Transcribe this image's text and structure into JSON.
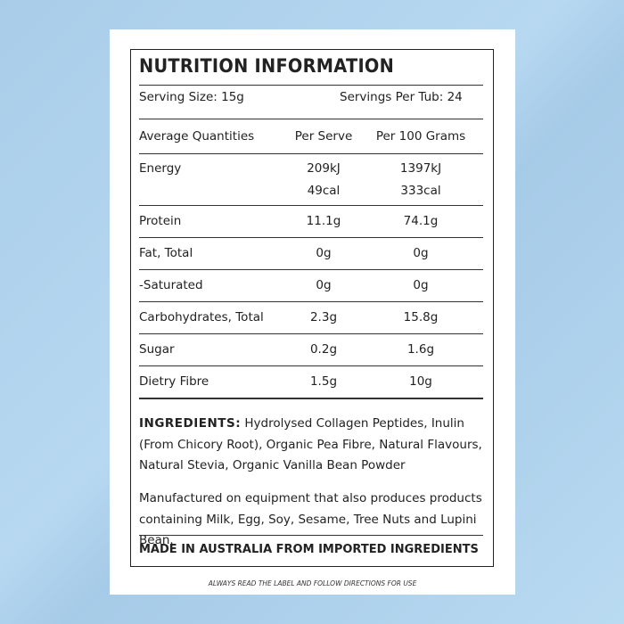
{
  "title": "NUTRITION INFORMATION",
  "serving_size": "Serving Size: 15g",
  "servings_per_tub": "Servings Per Tub: 24",
  "table": {
    "header": [
      "Average Quantities",
      "Per Serve",
      "Per 100 Grams"
    ],
    "rows": [
      [
        "Energy",
        [
          "209kJ",
          "49cal"
        ],
        [
          "1397kJ",
          "333cal"
        ]
      ],
      [
        "Protein",
        "11.1g",
        "74.1g"
      ],
      [
        "Fat, Total",
        "0g",
        "0g"
      ],
      [
        "-Saturated",
        "0g",
        "0g"
      ],
      [
        "Carbohydrates, Total",
        "2.3g",
        "15.8g"
      ],
      [
        "Sugar",
        "0.2g",
        "1.6g"
      ],
      [
        "Dietry Fibre",
        "1.5g",
        "10g"
      ]
    ]
  },
  "ingredients": {
    "label": "INGREDIENTS:",
    "text": "Hydrolysed Collagen Peptides, Inulin (From Chicory Root), Organic Pea Fibre, Natural Flavours, Natural Stevia, Organic Vanilla Bean Powder"
  },
  "allergens": "Manufactured on equipment that also produces products containing Milk, Egg, Soy, Sesame, Tree Nuts and Lupini Bean.",
  "made_in": "MADE IN AUSTRALIA FROM IMPORTED INGREDIENTS",
  "footer": "ALWAYS READ THE LABEL AND FOLLOW DIRECTIONS FOR USE"
}
